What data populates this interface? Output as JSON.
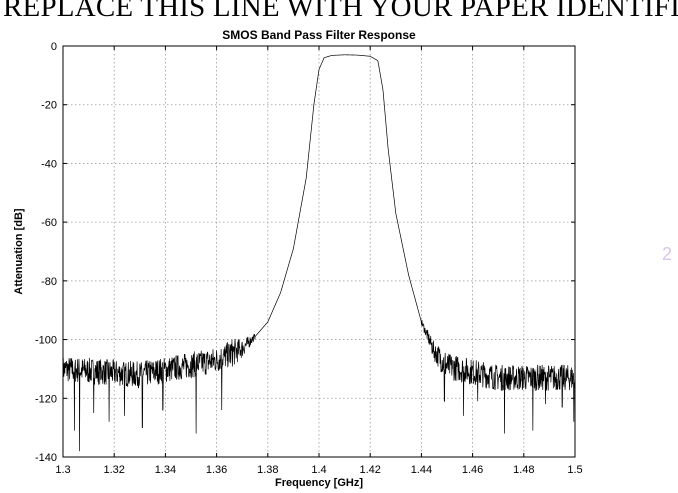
{
  "header": {
    "text": "REPLACE THIS LINE WITH YOUR PAPER IDENTIFICATION NUMBER"
  },
  "chart_data": {
    "type": "line",
    "title": "SMOS Band Pass Filter Response",
    "xlabel": "Frequency [GHz]",
    "ylabel": "Attenuation [dB]",
    "xlim": [
      1.3,
      1.5
    ],
    "ylim": [
      -140,
      0
    ],
    "grid": true,
    "xticks": [
      1.3,
      1.32,
      1.34,
      1.36,
      1.38,
      1.4,
      1.42,
      1.44,
      1.46,
      1.48,
      1.5
    ],
    "yticks": [
      0,
      -20,
      -40,
      -60,
      -80,
      -100,
      -120,
      -140
    ],
    "series": [
      {
        "x": [
          1.3,
          1.33,
          1.36,
          1.37,
          1.375,
          1.38,
          1.385,
          1.39,
          1.395,
          1.398,
          1.4,
          1.402,
          1.405,
          1.41,
          1.415,
          1.42,
          1.423,
          1.425,
          1.427,
          1.43,
          1.435,
          1.44,
          1.445,
          1.45,
          1.47,
          1.5
        ],
        "y": [
          -110,
          -112,
          -107,
          -103,
          -99,
          -94,
          -84,
          -69,
          -45,
          -20,
          -8,
          -4,
          -3.2,
          -3.0,
          -3.1,
          -3.5,
          -5,
          -15,
          -35,
          -57,
          -78,
          -94,
          -104,
          -109,
          -113,
          -113
        ]
      }
    ],
    "noise_floor": {
      "left": {
        "from": 1.3,
        "to": 1.375
      },
      "right": {
        "from": 1.44,
        "to": 1.5
      },
      "spikes": [
        {
          "x": 1.3065,
          "y": -138
        },
        {
          "x": 1.3045,
          "y": -131
        },
        {
          "x": 1.312,
          "y": -125
        },
        {
          "x": 1.318,
          "y": -128
        },
        {
          "x": 1.324,
          "y": -126
        },
        {
          "x": 1.331,
          "y": -130
        },
        {
          "x": 1.339,
          "y": -124
        },
        {
          "x": 1.352,
          "y": -132
        },
        {
          "x": 1.362,
          "y": -124
        },
        {
          "x": 1.449,
          "y": -121
        },
        {
          "x": 1.4565,
          "y": -126
        },
        {
          "x": 1.462,
          "y": -121
        },
        {
          "x": 1.4725,
          "y": -132
        },
        {
          "x": 1.4835,
          "y": -131
        },
        {
          "x": 1.4885,
          "y": -122
        },
        {
          "x": 1.495,
          "y": -123
        },
        {
          "x": 1.4995,
          "y": -128
        }
      ]
    }
  },
  "edge": {
    "right_partial_text": "DEN",
    "right_partial_glyph": "2"
  }
}
